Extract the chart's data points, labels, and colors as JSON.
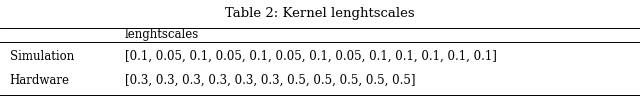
{
  "title": "Table 2: Kernel lenghtscales",
  "col_header": "lenghtscales",
  "row_labels": [
    "Simulation",
    "Hardware"
  ],
  "row_values": [
    "[0.1, 0.05, 0.1, 0.05, 0.1, 0.05, 0.1, 0.05, 0.1, 0.1, 0.1, 0.1, 0.1]",
    "[0.3, 0.3, 0.3, 0.3, 0.3, 0.3, 0.5, 0.5, 0.5, 0.5, 0.5]"
  ],
  "background_color": "#ffffff",
  "text_color": "#000000",
  "font_size": 8.5,
  "title_font_size": 9.5,
  "fig_width": 6.4,
  "fig_height": 0.99
}
